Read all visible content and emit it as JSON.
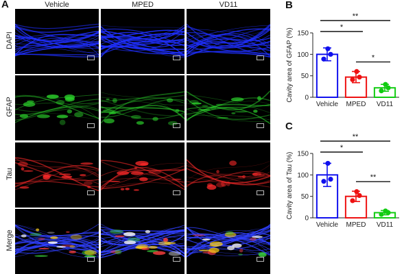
{
  "figure": {
    "panel_a_letter": "A",
    "columns": [
      "Vehicle",
      "MPED",
      "VD11"
    ],
    "rows": [
      "DAPI",
      "GFAP",
      "Tau",
      "Merge"
    ],
    "stain_colors": {
      "DAPI": "#1f2fff",
      "GFAP": "#2bd12b",
      "Tau": "#ff2a2a",
      "Merge": "#3040ff"
    }
  },
  "chart_data": [
    {
      "panel": "B",
      "type": "bar",
      "categories": [
        "Vehicle",
        "MPED",
        "VD11"
      ],
      "colors": [
        "#1010ee",
        "#ee1111",
        "#11cc11"
      ],
      "values": [
        100,
        47,
        22
      ],
      "errors": [
        15,
        13,
        8
      ],
      "points": [
        [
          113,
          100,
          89
        ],
        [
          60,
          47,
          41
        ],
        [
          30,
          22,
          15
        ]
      ],
      "ylabel": "Cavity area of GFAP (%)",
      "ylim": [
        0,
        150
      ],
      "yticks": [
        0,
        50,
        100,
        150
      ],
      "significance": [
        {
          "from": 0,
          "to": 2,
          "label": "**"
        },
        {
          "from": 0,
          "to": 1,
          "label": "*"
        },
        {
          "from": 1,
          "to": 2,
          "label": "*"
        }
      ]
    },
    {
      "panel": "C",
      "type": "bar",
      "categories": [
        "Vehicle",
        "MPED",
        "VD11"
      ],
      "colors": [
        "#1010ee",
        "#ee1111",
        "#11cc11"
      ],
      "values": [
        100,
        50,
        12
      ],
      "errors": [
        27,
        12,
        5
      ],
      "points": [
        [
          127,
          90,
          85
        ],
        [
          61,
          52,
          40
        ],
        [
          16,
          12,
          8
        ]
      ],
      "ylabel": "Cavity area of Tau (%)",
      "ylim": [
        0,
        150
      ],
      "yticks": [
        0,
        50,
        100,
        150
      ],
      "significance": [
        {
          "from": 0,
          "to": 2,
          "label": "**"
        },
        {
          "from": 0,
          "to": 1,
          "label": "*"
        },
        {
          "from": 1,
          "to": 2,
          "label": "**"
        }
      ]
    }
  ]
}
